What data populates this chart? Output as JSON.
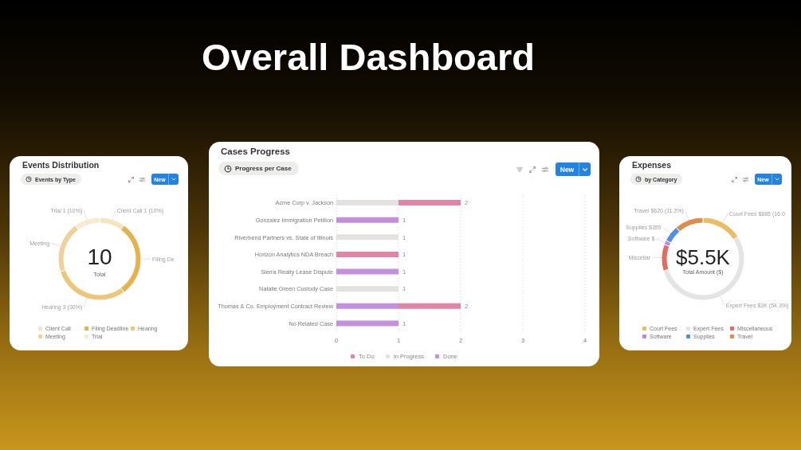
{
  "chart_data": [
    {
      "type": "donut",
      "title": "Events Distribution",
      "subtitle": "Events by Type",
      "categories": [
        "Client Call",
        "Filing Deadline",
        "Hearing",
        "Meeting",
        "Trial"
      ],
      "values": [
        1,
        3,
        3,
        2,
        1
      ],
      "colors": [
        "#f5e4bd",
        "#e6b24c",
        "#edc778",
        "#eed29a",
        "#f7ead0"
      ],
      "value_labels": [
        "Client Call 1 (10%)",
        "Filing De",
        "Hearing 3 (30%)",
        "Meeting",
        "Trial 1 (10%)"
      ],
      "legend": "bottom",
      "annotations": [
        "New",
        "10",
        "Total",
        "Overall Dashboard"
      ]
    },
    {
      "type": "bar",
      "orientation": "horizontal",
      "stacked": true,
      "title": "Cases Progress",
      "subtitle": "Progress per Case",
      "categories": [
        "Acme Corp v. Jackson",
        "Gonzalez Immigration Petition",
        "Riverbend Partners vs. State of Illinois",
        "Horizon Analytics NDA Breach",
        "Sierra Realty Lease Dispute",
        "Natalie Green Custody Case",
        "Thomas & Co. Employment Contract Review",
        "No Related Case"
      ],
      "series": [
        {
          "name": "Done",
          "color": "#c58fe0",
          "values": [
            null,
            1,
            null,
            null,
            1,
            null,
            1,
            1
          ]
        },
        {
          "name": "In Progress",
          "color": "#e3e2e0",
          "values": [
            1,
            null,
            1,
            null,
            null,
            1,
            null,
            null
          ]
        },
        {
          "name": "To Do",
          "color": "#e184a6",
          "values": [
            1,
            null,
            null,
            1,
            null,
            null,
            1,
            null
          ]
        }
      ],
      "totals": [
        "2",
        "1",
        "1",
        "1",
        "1",
        "1",
        "2",
        "1"
      ],
      "xlim": [
        0,
        4
      ],
      "xticks": [
        0,
        1,
        2,
        3,
        4
      ],
      "grid": "x",
      "legend": "bottom",
      "annotations": [
        "New"
      ]
    },
    {
      "type": "donut",
      "title": "Expenses",
      "subtitle": "by Category",
      "categories": [
        "Court Fees",
        "Expert Fees",
        "Miscellaneous",
        "Software",
        "Supplies",
        "Travel"
      ],
      "values": [
        885,
        3004,
        575,
        95,
        355,
        620
      ],
      "colors": [
        "#e9bd60",
        "#e4e4e4",
        "#e66b5f",
        "#c085e0",
        "#4e91e3",
        "#e08b4b"
      ],
      "value_labels": [
        "Court Fees $885 (16.0",
        "Expert Fees $3K (54.3%)",
        "Miscellar",
        "Software $",
        "Supplies $355",
        "Travel $620 (11.2%)"
      ],
      "legend": "bottom",
      "annotations": [
        "New",
        "$5.5K",
        "Total Amount ($)"
      ]
    }
  ]
}
